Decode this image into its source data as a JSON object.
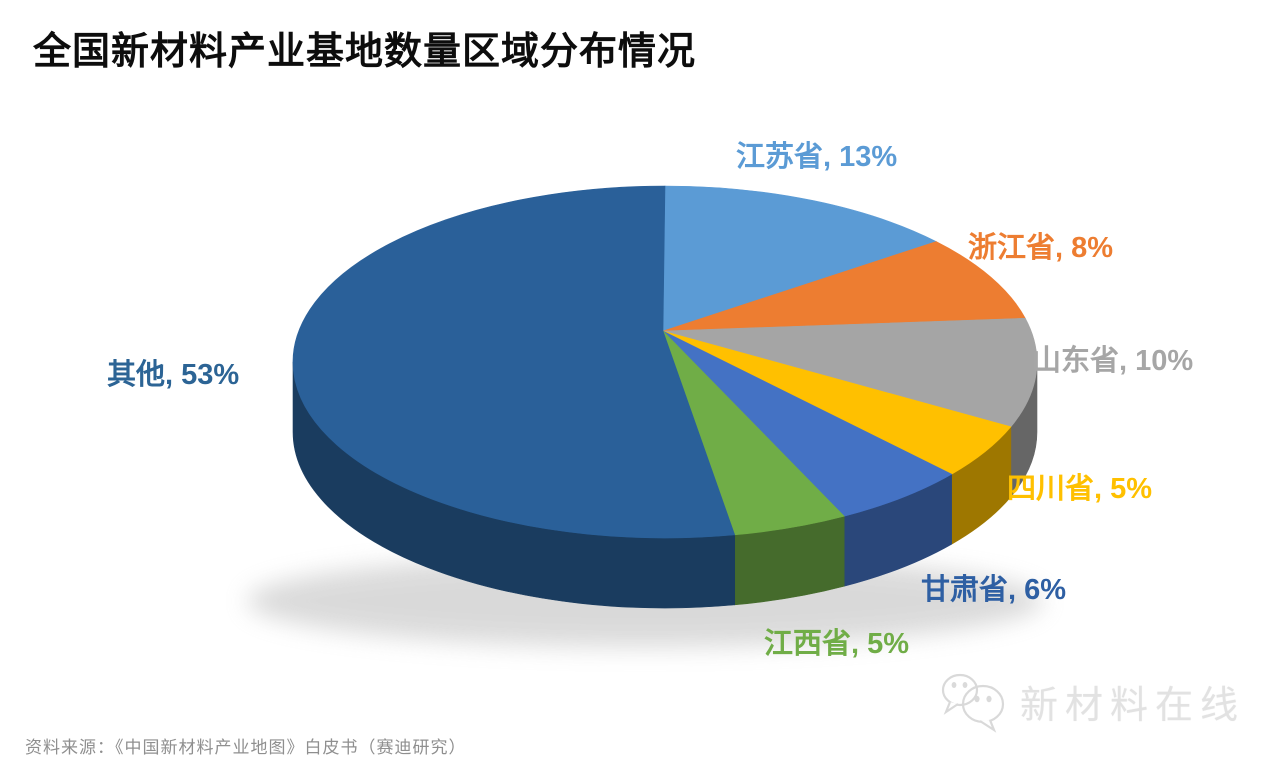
{
  "title": "全国新材料产业基地数量区域分布情况",
  "source_note": "资料来源：《中国新材料产业地图》白皮书（赛迪研究）",
  "watermark": {
    "icon": "wechat-bubbles-icon",
    "brand": "新材料在线",
    "color": "#e2e2e2"
  },
  "chart_data": {
    "type": "pie",
    "style": "3d",
    "title": "全国新材料产业基地数量区域分布情况",
    "unit": "%",
    "start_angle_deg": 0,
    "direction": "clockwise",
    "legend_position": "none",
    "labels_outside": true,
    "slices": [
      {
        "label": "江苏省",
        "value_pct": 13,
        "color": "#5B9BD5",
        "label_text": "江苏省, 13%",
        "label_color": "#5B9BD5"
      },
      {
        "label": "浙江省",
        "value_pct": 8,
        "color": "#ED7D31",
        "label_text": "浙江省, 8%",
        "label_color": "#ED7D31"
      },
      {
        "label": "山东省",
        "value_pct": 10,
        "color": "#A5A5A5",
        "label_text": "山东省, 10%",
        "label_color": "#A6A6A6"
      },
      {
        "label": "四川省",
        "value_pct": 5,
        "color": "#FFC000",
        "label_text": "四川省, 5%",
        "label_color": "#FFC000"
      },
      {
        "label": "甘肃省",
        "value_pct": 6,
        "color": "#4472C4",
        "label_text": "甘肃省, 6%",
        "label_color": "#2E5FA3"
      },
      {
        "label": "江西省",
        "value_pct": 5,
        "color": "#70AD47",
        "label_text": "江西省, 5%",
        "label_color": "#70AD47"
      },
      {
        "label": "其他",
        "value_pct": 53,
        "color": "#2A6099",
        "label_text": "其他, 53%",
        "label_color": "#2C6495"
      }
    ]
  }
}
